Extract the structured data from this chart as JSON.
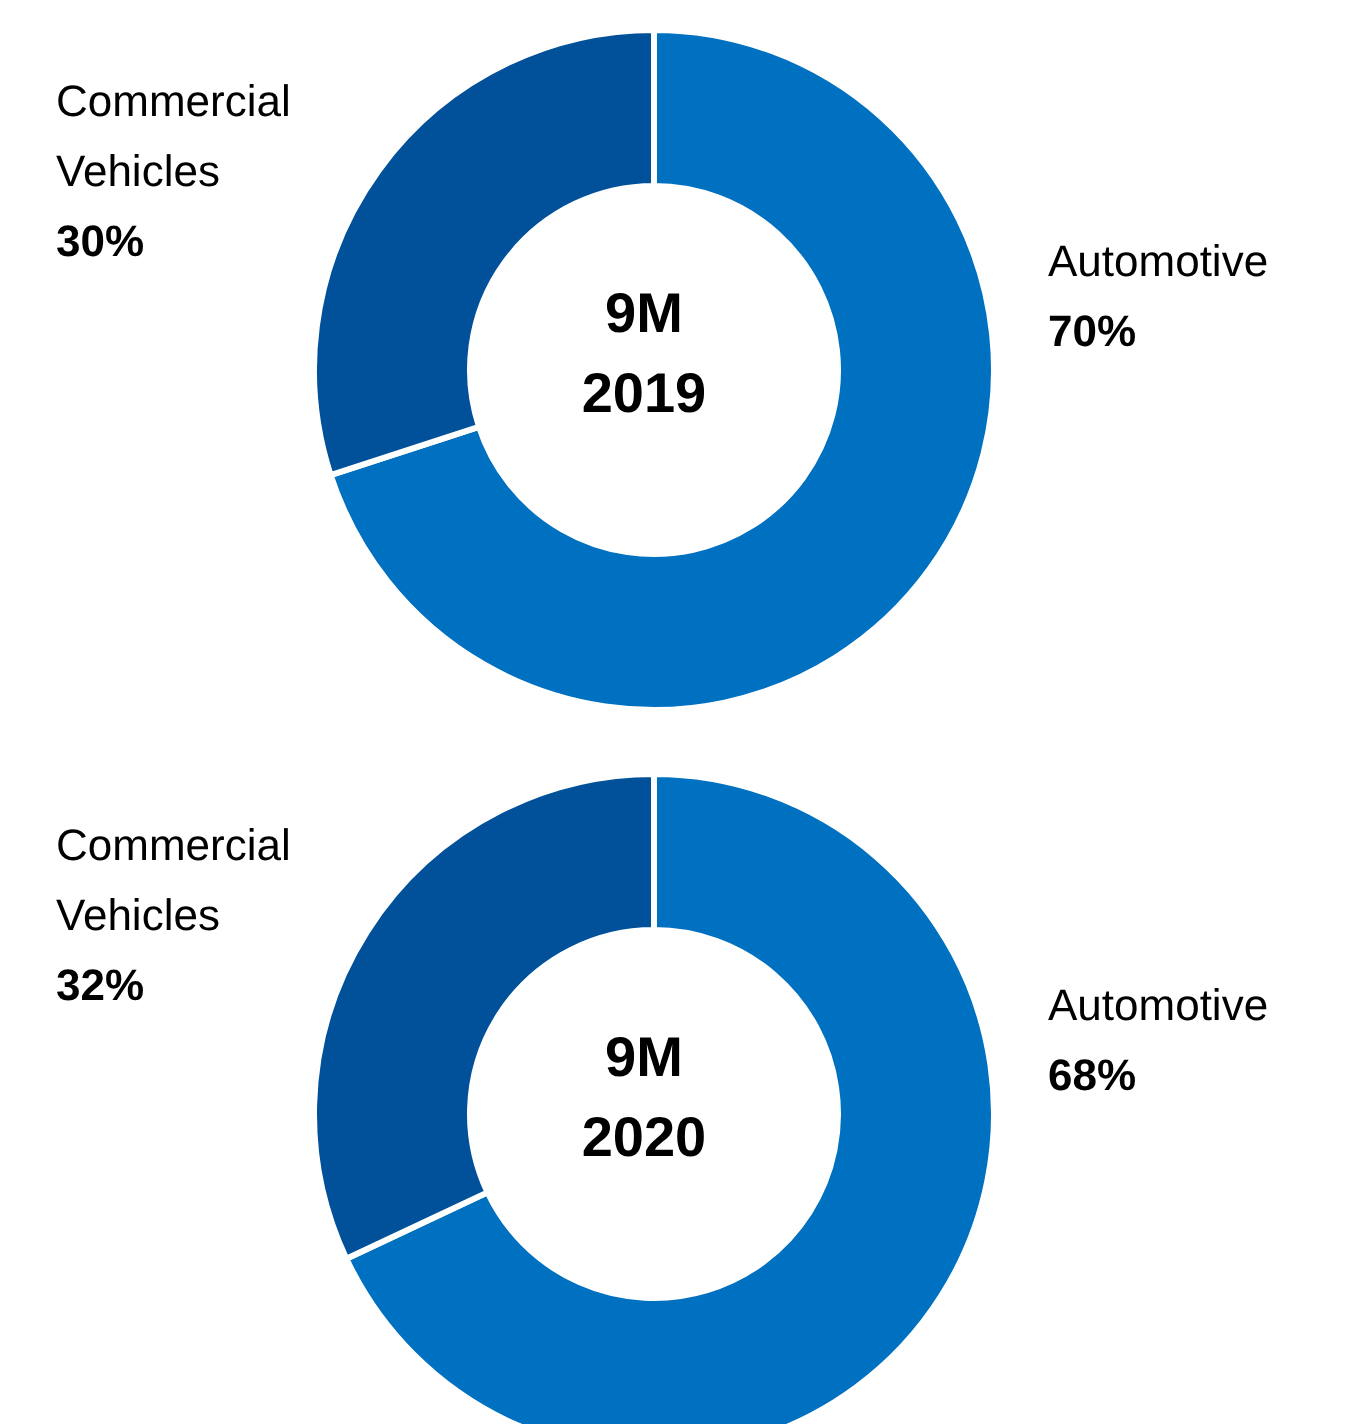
{
  "chart_data": [
    {
      "type": "donut",
      "title": "9M 2019",
      "categories": [
        "Automotive",
        "Commercial Vehicles"
      ],
      "values": [
        70,
        30
      ],
      "colors": [
        "#0070c0",
        "#00509a"
      ],
      "value_labels": [
        "70%",
        "30%"
      ]
    },
    {
      "type": "donut",
      "title": "9M 2020",
      "categories": [
        "Automotive",
        "Commercial Vehicles"
      ],
      "values": [
        68,
        32
      ],
      "colors": [
        "#0070c0",
        "#00509a"
      ],
      "value_labels": [
        "68%",
        "32%"
      ]
    }
  ]
}
